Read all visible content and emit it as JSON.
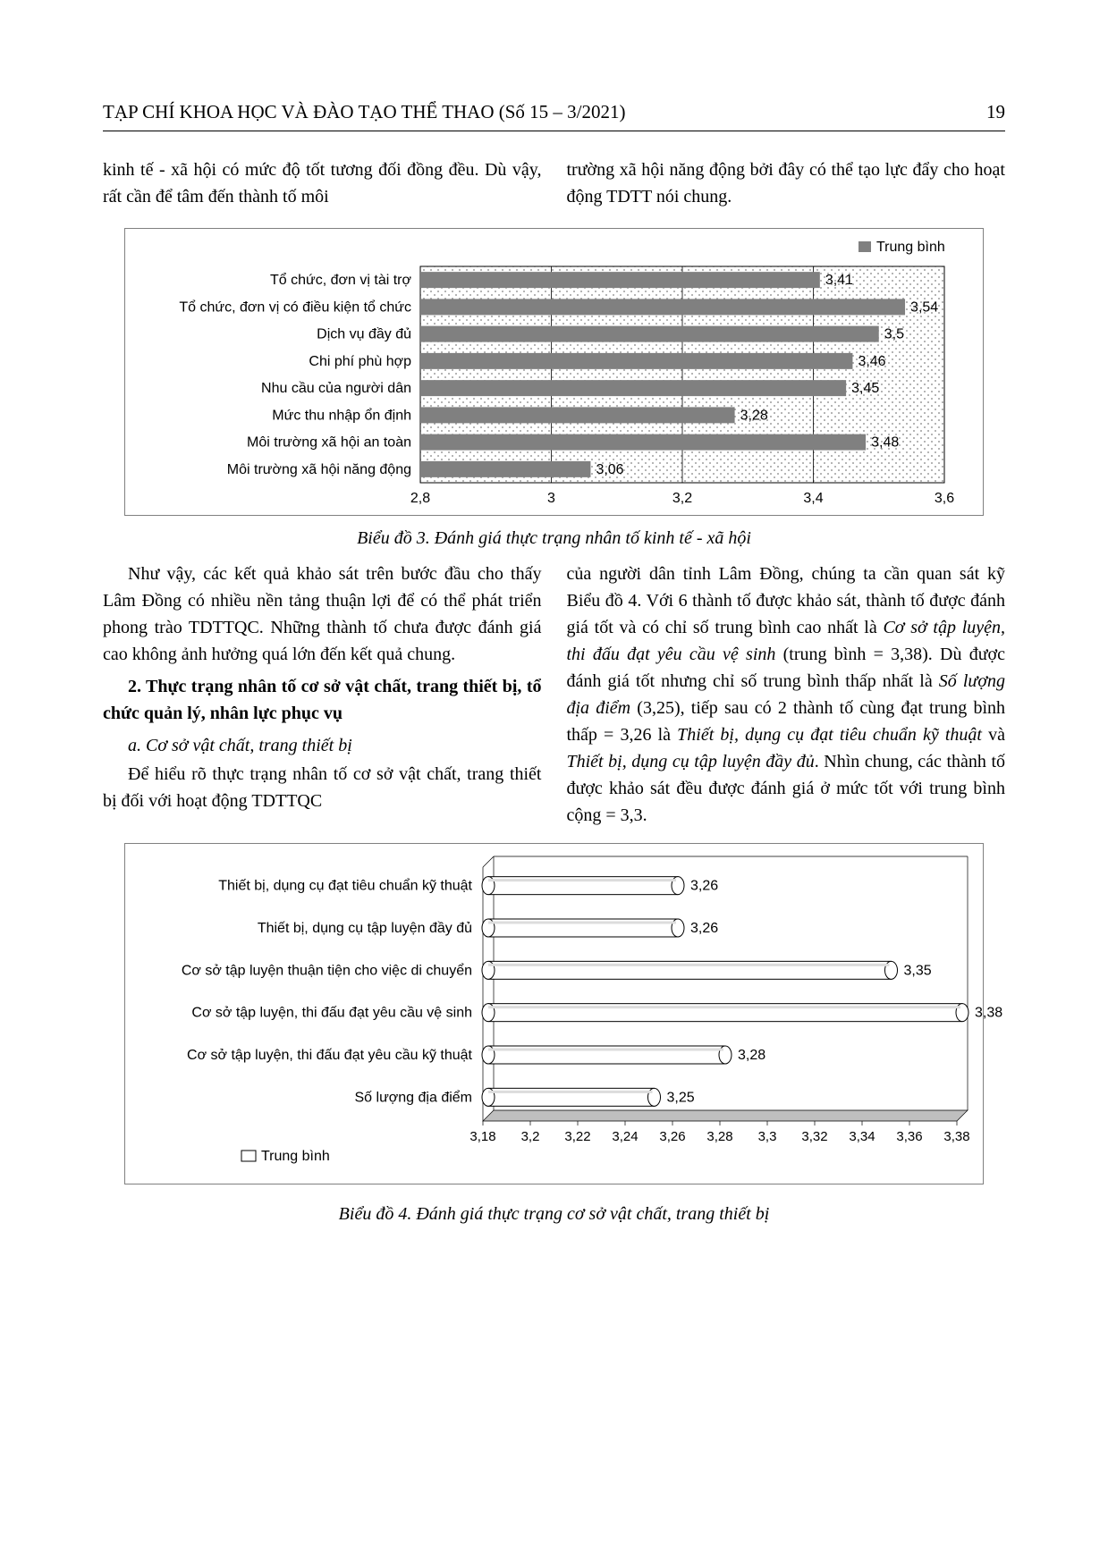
{
  "header": {
    "journal": "TẠP CHÍ KHOA HỌC VÀ ĐÀO TẠO THỂ THAO (Số 15 – 3/2021)",
    "page": "19"
  },
  "intro_cols": {
    "left": "kinh tế - xã hội có mức độ tốt tương đối đồng đều. Dù vậy, rất cần để tâm đến thành tố môi",
    "right": "trường xã hội năng động bởi đây có thể tạo lực đẩy cho hoạt động TDTT nói chung."
  },
  "chart3": {
    "type": "bar-horizontal",
    "legend": "Trung bình",
    "caption": "Biểu đồ 3. Đánh giá thực trạng nhân tố kinh tế - xã hội",
    "xlim": [
      2.8,
      3.6
    ],
    "xticks": [
      "2,8",
      "3",
      "3,2",
      "3,4",
      "3,6"
    ],
    "grid_color": "#000000",
    "plot_bg_pattern": true,
    "bar_color": "#808080",
    "label_fontsize": 16,
    "value_fontsize": 16,
    "items": [
      {
        "label": "Tổ chức, đơn vị tài trợ",
        "value": 3.41,
        "valstr": "3,41"
      },
      {
        "label": "Tổ chức, đơn vị có điều kiện tổ chức",
        "value": 3.54,
        "valstr": "3,54"
      },
      {
        "label": "Dịch vụ đầy đủ",
        "value": 3.5,
        "valstr": "3,5"
      },
      {
        "label": "Chi phí phù hợp",
        "value": 3.46,
        "valstr": "3,46"
      },
      {
        "label": "Nhu cầu của người dân",
        "value": 3.45,
        "valstr": "3,45"
      },
      {
        "label": "Mức thu nhập ổn định",
        "value": 3.28,
        "valstr": "3,28"
      },
      {
        "label": "Môi trường xã hội an toàn",
        "value": 3.48,
        "valstr": "3,48"
      },
      {
        "label": "Môi trường xã hội năng động",
        "value": 3.06,
        "valstr": "3,06"
      }
    ]
  },
  "mid_cols": {
    "left_p1": "Như vậy, các kết quả khảo sát trên bước đầu cho thấy Lâm Đồng có nhiều nền tảng thuận lợi để có thể phát triển phong trào TDTTQC. Những thành tố chưa được đánh giá cao không ảnh hưởng quá lớn đến kết quả chung.",
    "left_h2": "2. Thực trạng nhân tố cơ sở vật chất, trang thiết bị, tổ chức quản lý, nhân lực phục vụ",
    "left_sub_a": "a. Cơ sở vật chất, trang thiết bị",
    "left_p2": "Để hiểu rõ thực trạng nhân tố cơ sở vật chất, trang thiết bị đối với hoạt động TDTTQC",
    "right_p1_a": "của người dân tỉnh Lâm Đồng, chúng ta cần quan sát kỹ Biểu đồ 4. Với 6 thành tố được khảo sát, thành tố được đánh giá tốt và có chỉ số trung bình cao nhất là ",
    "right_em1": "Cơ sở tập luyện, thi đấu đạt yêu cầu vệ sinh",
    "right_p1_b": " (trung bình = 3,38). Dù được đánh giá tốt nhưng chỉ số trung bình thấp nhất là ",
    "right_em2": "Số lượng địa điểm",
    "right_p1_c": " (3,25), tiếp sau có 2 thành tố cùng đạt trung bình thấp = 3,26 là ",
    "right_em3": "Thiết bị, dụng cụ đạt tiêu chuẩn kỹ thuật",
    "right_p1_d": " và ",
    "right_em4": "Thiết bị, dụng cụ tập luyện đầy đủ",
    "right_p1_e": ". Nhìn chung, các thành tố được khảo sát đều được đánh giá ở mức tốt với trung bình cộng = 3,3."
  },
  "chart4": {
    "type": "bar-horizontal-3d",
    "legend": "Trung bình",
    "caption": "Biểu đồ 4. Đánh giá thực trạng cơ sở vật chất, trang thiết bị",
    "xlim": [
      3.18,
      3.38
    ],
    "xticks": [
      "3,18",
      "3,2",
      "3,22",
      "3,24",
      "3,26",
      "3,28",
      "3,3",
      "3,32",
      "3,34",
      "3,36",
      "3,38"
    ],
    "bar_fill": "#ffffff",
    "bar_stroke": "#000000",
    "floor_fill": "#bfbfbf",
    "label_fontsize": 16,
    "value_fontsize": 16,
    "items": [
      {
        "label": "Thiết bị, dụng cụ đạt tiêu chuẩn kỹ thuật",
        "value": 3.26,
        "valstr": "3,26"
      },
      {
        "label": "Thiết bị, dụng cụ tập luyện đầy đủ",
        "value": 3.26,
        "valstr": "3,26"
      },
      {
        "label": "Cơ sở tập luyện thuận tiện cho việc di chuyển",
        "value": 3.35,
        "valstr": "3,35"
      },
      {
        "label": "Cơ sở tập luyện, thi đấu đạt yêu cầu vệ sinh",
        "value": 3.38,
        "valstr": "3,38"
      },
      {
        "label": "Cơ sở tập luyện, thi đấu đạt yêu cầu kỹ thuật",
        "value": 3.28,
        "valstr": "3,28"
      },
      {
        "label": "Số lượng địa điểm",
        "value": 3.25,
        "valstr": "3,25"
      }
    ]
  }
}
